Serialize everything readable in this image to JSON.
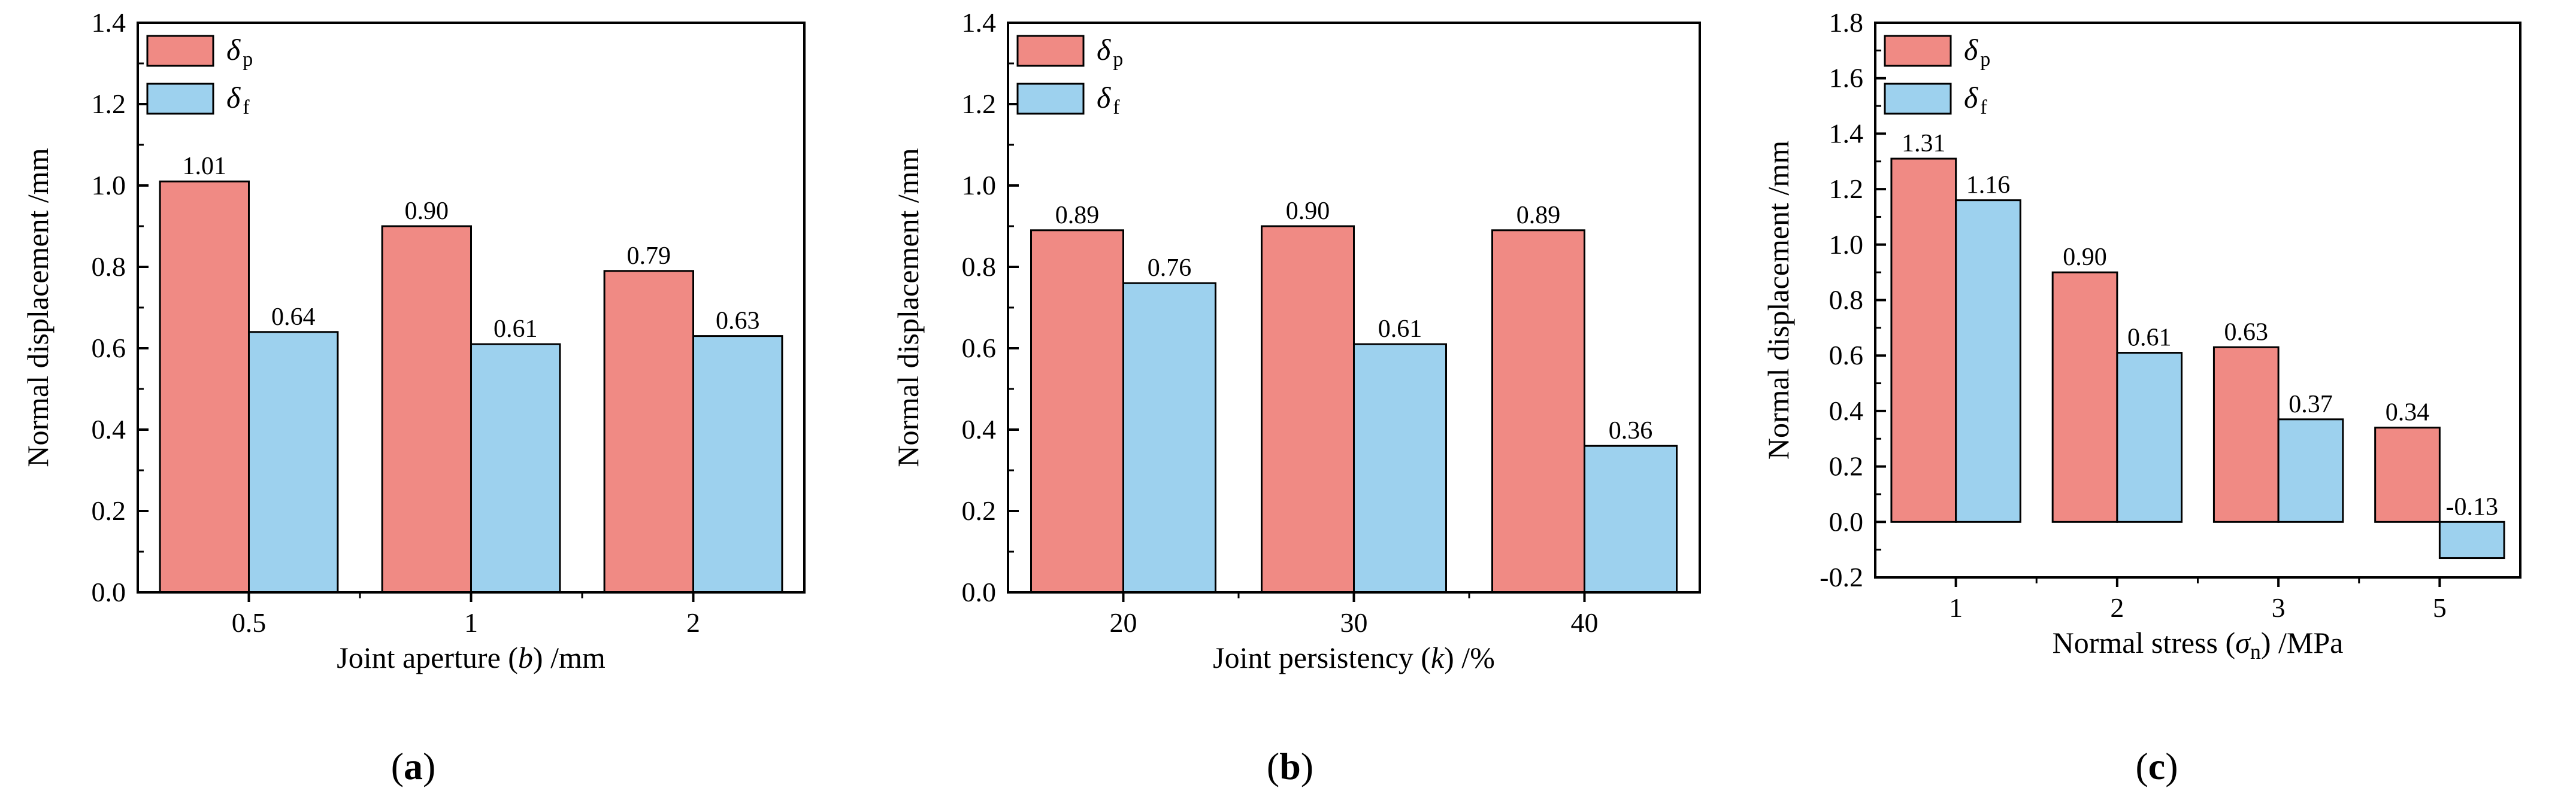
{
  "colors": {
    "peak": "#f08a84",
    "final": "#9dd1ee",
    "stroke": "#000000"
  },
  "chart_data": [
    {
      "type": "bar",
      "panel_label": "a",
      "xlabel_pre": "Joint aperture (",
      "xlabel_var": "b",
      "xlabel_post": ") /mm",
      "ylabel": "Normal displacement /mm",
      "categories": [
        "0.5",
        "1",
        "2"
      ],
      "ylim": [
        0,
        1.4
      ],
      "yticks": [
        "0.0",
        "0.2",
        "0.4",
        "0.6",
        "0.8",
        "1.0",
        "1.2",
        "1.4"
      ],
      "series": [
        {
          "name": "δp",
          "sym": "δ",
          "sub": "p",
          "values": [
            1.01,
            0.9,
            0.79
          ],
          "labels": [
            "1.01",
            "0.90",
            "0.79"
          ]
        },
        {
          "name": "δf",
          "sym": "δ",
          "sub": "f",
          "values": [
            0.64,
            0.61,
            0.63
          ],
          "labels": [
            "0.64",
            "0.61",
            "0.63"
          ]
        }
      ]
    },
    {
      "type": "bar",
      "panel_label": "b",
      "xlabel_pre": "Joint persistency (",
      "xlabel_var": "k",
      "xlabel_post": ") /%",
      "ylabel": "Normal displacement /mm",
      "categories": [
        "20",
        "30",
        "40"
      ],
      "ylim": [
        0,
        1.4
      ],
      "yticks": [
        "0.0",
        "0.2",
        "0.4",
        "0.6",
        "0.8",
        "1.0",
        "1.2",
        "1.4"
      ],
      "series": [
        {
          "name": "δp",
          "sym": "δ",
          "sub": "p",
          "values": [
            0.89,
            0.9,
            0.89
          ],
          "labels": [
            "0.89",
            "0.90",
            "0.89"
          ]
        },
        {
          "name": "δf",
          "sym": "δ",
          "sub": "f",
          "values": [
            0.76,
            0.61,
            0.36
          ],
          "labels": [
            "0.76",
            "0.61",
            "0.36"
          ]
        }
      ]
    },
    {
      "type": "bar",
      "panel_label": "c",
      "xlabel_pre": "Normal stress (",
      "xlabel_var": "σ",
      "xlabel_sub": "n",
      "xlabel_post": ") /MPa",
      "ylabel": "Normal displacement /mm",
      "categories": [
        "1",
        "2",
        "3",
        "5"
      ],
      "ylim": [
        -0.2,
        1.8
      ],
      "yticks": [
        "-0.2",
        "0.0",
        "0.2",
        "0.4",
        "0.6",
        "0.8",
        "1.0",
        "1.2",
        "1.4",
        "1.6",
        "1.8"
      ],
      "series": [
        {
          "name": "δp",
          "sym": "δ",
          "sub": "p",
          "values": [
            1.31,
            0.9,
            0.63,
            0.34
          ],
          "labels": [
            "1.31",
            "0.90",
            "0.63",
            "0.34"
          ]
        },
        {
          "name": "δf",
          "sym": "δ",
          "sub": "f",
          "values": [
            1.16,
            0.61,
            0.37,
            -0.13
          ],
          "labels": [
            "1.16",
            "0.61",
            "0.37",
            "-0.13"
          ]
        }
      ]
    }
  ]
}
